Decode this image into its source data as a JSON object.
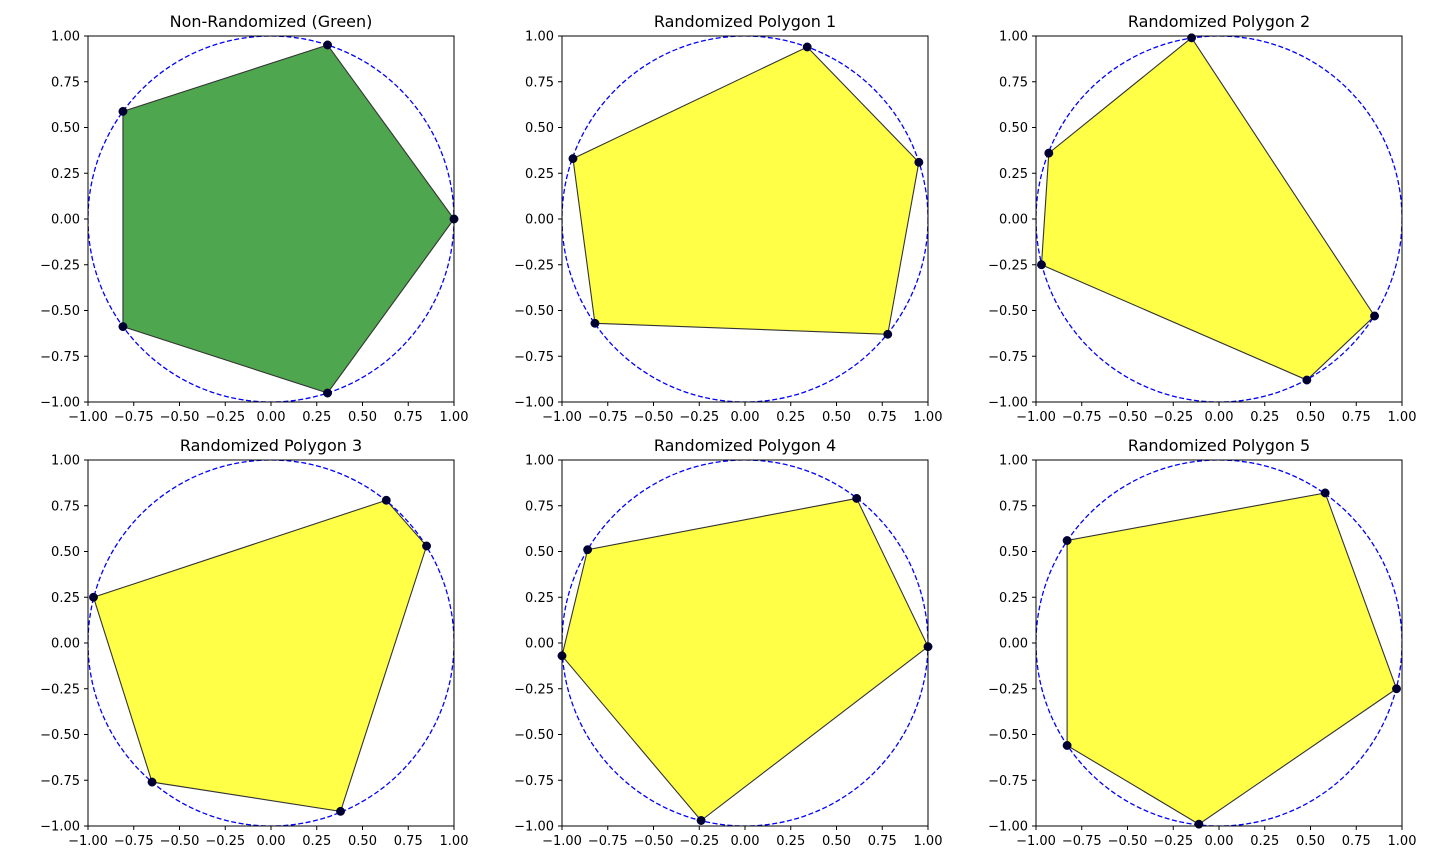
{
  "colors": {
    "green_fill": "#4ea64e",
    "yellow_fill": "#ffff48",
    "edge": "#333333",
    "circle": "#0000ff",
    "vertex": "#000033"
  },
  "chart_data": [
    {
      "type": "scatter",
      "title": "Non-Randomized (Green)",
      "fill": "green",
      "xlim": [
        -1,
        1
      ],
      "ylim": [
        -1,
        1
      ],
      "xticks": [
        "−1.00",
        "−0.75",
        "−0.50",
        "−0.25",
        "0.00",
        "0.25",
        "0.50",
        "0.75",
        "1.00"
      ],
      "yticks": [
        "−1.00",
        "−0.75",
        "−0.50",
        "−0.25",
        "0.00",
        "0.25",
        "0.50",
        "0.75",
        "1.00"
      ],
      "circle": {
        "center": [
          0,
          0
        ],
        "radius": 1,
        "style": "dashed"
      },
      "vertices": [
        [
          1.0,
          0.0
        ],
        [
          0.309,
          0.951
        ],
        [
          -0.809,
          0.588
        ],
        [
          -0.809,
          -0.588
        ],
        [
          0.309,
          -0.951
        ]
      ]
    },
    {
      "type": "scatter",
      "title": "Randomized Polygon 1",
      "fill": "yellow",
      "xlim": [
        -1,
        1
      ],
      "ylim": [
        -1,
        1
      ],
      "xticks": [
        "−1.00",
        "−0.75",
        "−0.50",
        "−0.25",
        "0.00",
        "0.25",
        "0.50",
        "0.75",
        "1.00"
      ],
      "yticks": [
        "−1.00",
        "−0.75",
        "−0.50",
        "−0.25",
        "0.00",
        "0.25",
        "0.50",
        "0.75",
        "1.00"
      ],
      "circle": {
        "center": [
          0,
          0
        ],
        "radius": 1,
        "style": "dashed"
      },
      "vertices": [
        [
          0.34,
          0.94
        ],
        [
          0.95,
          0.31
        ],
        [
          0.78,
          -0.63
        ],
        [
          -0.82,
          -0.57
        ],
        [
          -0.94,
          0.33
        ]
      ]
    },
    {
      "type": "scatter",
      "title": "Randomized Polygon 2",
      "fill": "yellow",
      "xlim": [
        -1,
        1
      ],
      "ylim": [
        -1,
        1
      ],
      "xticks": [
        "−1.00",
        "−0.75",
        "−0.50",
        "−0.25",
        "0.00",
        "0.25",
        "0.50",
        "0.75",
        "1.00"
      ],
      "yticks": [
        "−1.00",
        "−0.75",
        "−0.50",
        "−0.25",
        "0.00",
        "0.25",
        "0.50",
        "0.75",
        "1.00"
      ],
      "circle": {
        "center": [
          0,
          0
        ],
        "radius": 1,
        "style": "dashed"
      },
      "vertices": [
        [
          -0.15,
          0.99
        ],
        [
          0.85,
          -0.53
        ],
        [
          0.48,
          -0.88
        ],
        [
          -0.97,
          -0.25
        ],
        [
          -0.93,
          0.36
        ]
      ]
    },
    {
      "type": "scatter",
      "title": "Randomized Polygon 3",
      "fill": "yellow",
      "xlim": [
        -1,
        1
      ],
      "ylim": [
        -1,
        1
      ],
      "xticks": [
        "−1.00",
        "−0.75",
        "−0.50",
        "−0.25",
        "0.00",
        "0.25",
        "0.50",
        "0.75",
        "1.00"
      ],
      "yticks": [
        "−1.00",
        "−0.75",
        "−0.50",
        "−0.25",
        "0.00",
        "0.25",
        "0.50",
        "0.75",
        "1.00"
      ],
      "circle": {
        "center": [
          0,
          0
        ],
        "radius": 1,
        "style": "dashed"
      },
      "vertices": [
        [
          0.63,
          0.78
        ],
        [
          0.85,
          0.53
        ],
        [
          0.38,
          -0.92
        ],
        [
          -0.65,
          -0.76
        ],
        [
          -0.97,
          0.25
        ]
      ]
    },
    {
      "type": "scatter",
      "title": "Randomized Polygon 4",
      "fill": "yellow",
      "xlim": [
        -1,
        1
      ],
      "ylim": [
        -1,
        1
      ],
      "xticks": [
        "−1.00",
        "−0.75",
        "−0.50",
        "−0.25",
        "0.00",
        "0.25",
        "0.50",
        "0.75",
        "1.00"
      ],
      "yticks": [
        "−1.00",
        "−0.75",
        "−0.50",
        "−0.25",
        "0.00",
        "0.25",
        "0.50",
        "0.75",
        "1.00"
      ],
      "circle": {
        "center": [
          0,
          0
        ],
        "radius": 1,
        "style": "dashed"
      },
      "vertices": [
        [
          0.61,
          0.79
        ],
        [
          1.0,
          -0.02
        ],
        [
          -0.24,
          -0.97
        ],
        [
          -1.0,
          -0.07
        ],
        [
          -0.86,
          0.51
        ]
      ]
    },
    {
      "type": "scatter",
      "title": "Randomized Polygon 5",
      "fill": "yellow",
      "xlim": [
        -1,
        1
      ],
      "ylim": [
        -1,
        1
      ],
      "xticks": [
        "−1.00",
        "−0.75",
        "−0.50",
        "−0.25",
        "0.00",
        "0.25",
        "0.50",
        "0.75",
        "1.00"
      ],
      "yticks": [
        "−1.00",
        "−0.75",
        "−0.50",
        "−0.25",
        "0.00",
        "0.25",
        "0.50",
        "0.75",
        "1.00"
      ],
      "circle": {
        "center": [
          0,
          0
        ],
        "radius": 1,
        "style": "dashed"
      },
      "vertices": [
        [
          0.58,
          0.82
        ],
        [
          0.97,
          -0.25
        ],
        [
          -0.11,
          -0.99
        ],
        [
          -0.83,
          -0.56
        ],
        [
          -0.83,
          0.56
        ]
      ]
    }
  ]
}
